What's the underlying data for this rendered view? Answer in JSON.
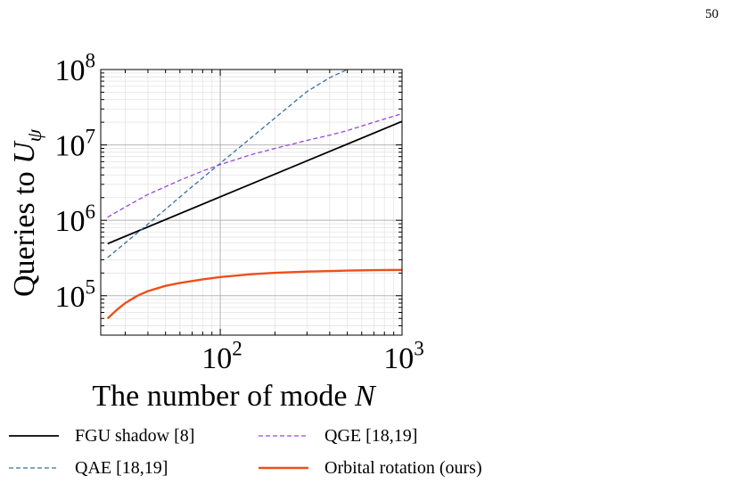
{
  "page_number": "50",
  "chart_data": {
    "type": "line",
    "xlabel": "The number of mode N",
    "ylabel": "Queries to U_ψ",
    "xscale": "log",
    "yscale": "log",
    "xlim": [
      22,
      1000
    ],
    "ylim": [
      30000,
      100000000
    ],
    "x_ticks": [
      {
        "value": 100,
        "base": "10",
        "exp": "2"
      },
      {
        "value": 1000,
        "base": "10",
        "exp": "3"
      }
    ],
    "y_ticks": [
      {
        "value": 100000,
        "base": "10",
        "exp": "5"
      },
      {
        "value": 1000000,
        "base": "10",
        "exp": "6"
      },
      {
        "value": 10000000,
        "base": "10",
        "exp": "7"
      },
      {
        "value": 100000000,
        "base": "10",
        "exp": "8"
      }
    ],
    "grid": true,
    "legend_position": "bottom",
    "series": [
      {
        "name": "FGU shadow [8]",
        "color": "#000000",
        "style": "solid",
        "x": [
          24,
          100,
          1000
        ],
        "y": [
          490000,
          2050000,
          20500000
        ]
      },
      {
        "name": "QAE [18,19]",
        "color": "#3a6f9f",
        "style": "dashed",
        "x": [
          24,
          35,
          50,
          70,
          100,
          150,
          200,
          300,
          400,
          500
        ],
        "y": [
          320000,
          680000,
          1400000,
          2800000,
          5700000,
          12800000,
          22800000,
          51000000,
          78000000,
          100000000
        ]
      },
      {
        "name": "QGE [18,19]",
        "color": "#9b45d6",
        "style": "dashed",
        "x": [
          24,
          30,
          40,
          60,
          80,
          100,
          150,
          200,
          300,
          400,
          500,
          700,
          1000
        ],
        "y": [
          1100000,
          1500000,
          2200000,
          3400000,
          4500000,
          5500000,
          7500000,
          9000000,
          11500000,
          13500000,
          15500000,
          20000000,
          26000000
        ]
      },
      {
        "name": "Orbital rotation (ours)",
        "color": "#ee4f1a",
        "style": "solid",
        "x": [
          24,
          27,
          30,
          35,
          40,
          50,
          60,
          80,
          100,
          150,
          200,
          300,
          500,
          700,
          1000
        ],
        "y": [
          50000,
          65000,
          80000,
          100000,
          115000,
          135000,
          148000,
          165000,
          177000,
          193000,
          201000,
          209000,
          215000,
          218000,
          220000
        ]
      }
    ]
  },
  "legend": [
    {
      "label": "FGU shadow  [8]"
    },
    {
      "label": "QGE  [18,19]"
    },
    {
      "label": "QAE  [18,19]"
    },
    {
      "label": "Orbital rotation (ours)"
    }
  ]
}
